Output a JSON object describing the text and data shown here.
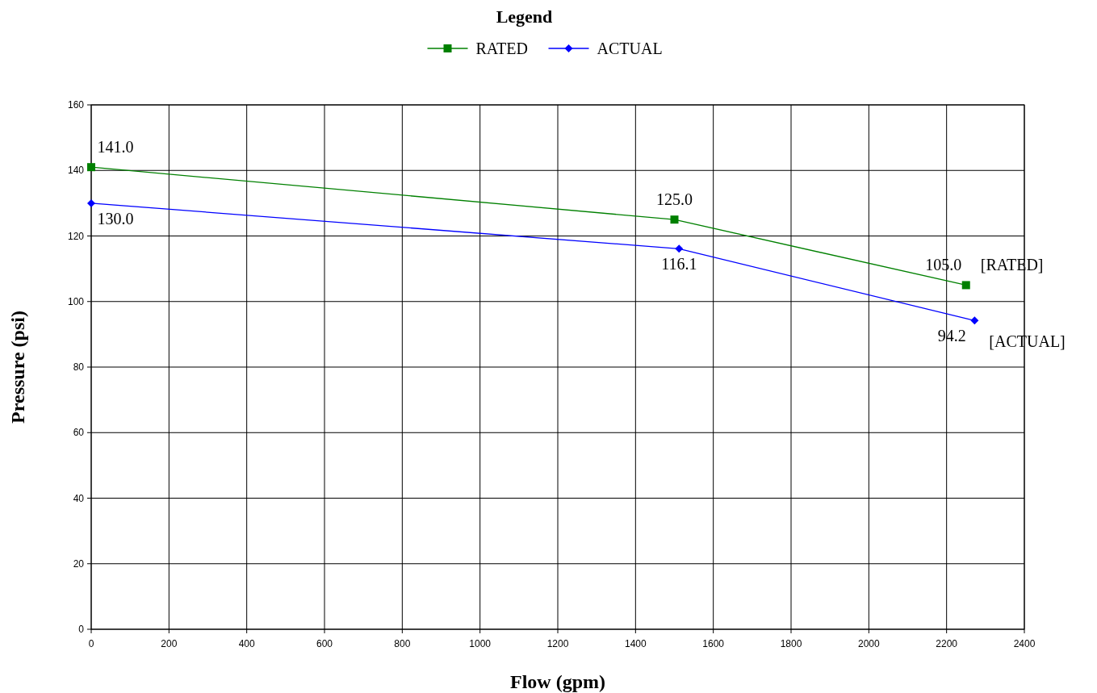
{
  "chart_data": {
    "type": "line",
    "xlabel": "Flow (gpm)",
    "ylabel": "Pressure (psi)",
    "legend_title": "Legend",
    "legend": "top",
    "xlim": [
      0,
      2400
    ],
    "xticks": [
      0,
      200,
      400,
      600,
      800,
      1000,
      1200,
      1400,
      1600,
      1800,
      2000,
      2200,
      2400
    ],
    "ylim": [
      0,
      160
    ],
    "yticks": [
      0,
      20,
      40,
      60,
      80,
      100,
      120,
      140,
      160
    ],
    "grid": true,
    "series": [
      {
        "name": "RATED",
        "color": "#008000",
        "marker": "square",
        "x": [
          0,
          1500,
          2250
        ],
        "values": [
          141.0,
          125.0,
          105.0
        ],
        "value_labels": [
          "141.0",
          "125.0",
          "105.0"
        ]
      },
      {
        "name": "ACTUAL",
        "color": "#0000ff",
        "marker": "diamond",
        "x": [
          0,
          1512,
          2272
        ],
        "values": [
          130.0,
          116.1,
          94.2
        ],
        "value_labels": [
          "130.0",
          "116.1",
          "94.2"
        ]
      }
    ],
    "annotations": [
      {
        "text": "[RATED]",
        "x": 2250,
        "y": 105
      },
      {
        "text": "[ACTUAL]",
        "x": 2272,
        "y": 94.2
      }
    ]
  }
}
